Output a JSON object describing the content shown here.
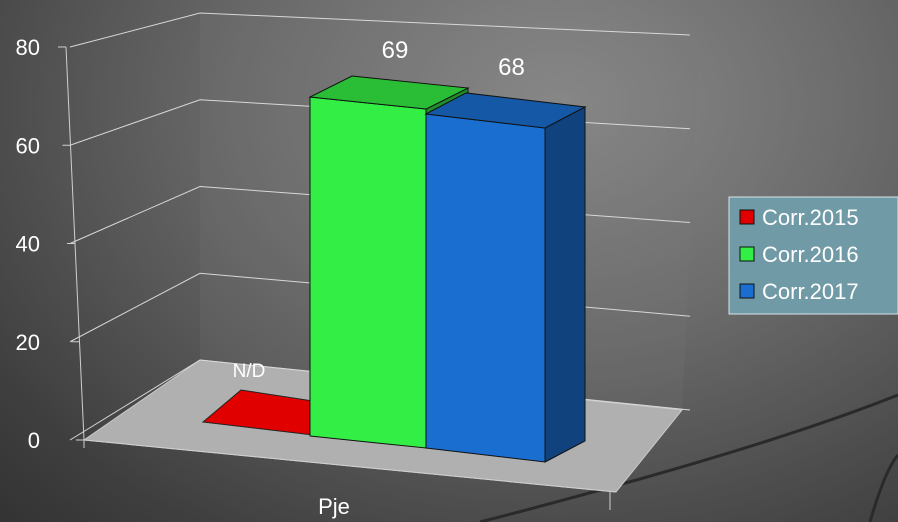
{
  "chart_data": {
    "type": "bar",
    "categories": [
      "Pje"
    ],
    "series": [
      {
        "name": "Corr.2015",
        "values": [
          null
        ],
        "label": "N/D",
        "color": "#e00000"
      },
      {
        "name": "Corr.2016",
        "values": [
          69
        ],
        "label": "69",
        "color": "#33ee44"
      },
      {
        "name": "Corr.2017",
        "values": [
          68
        ],
        "label": "68",
        "color": "#1a6ed0"
      }
    ],
    "yticks": [
      "0",
      "20",
      "40",
      "60",
      "80"
    ],
    "ylim": [
      0,
      80
    ],
    "grid": true,
    "legend_position": "right",
    "style": "3d"
  }
}
